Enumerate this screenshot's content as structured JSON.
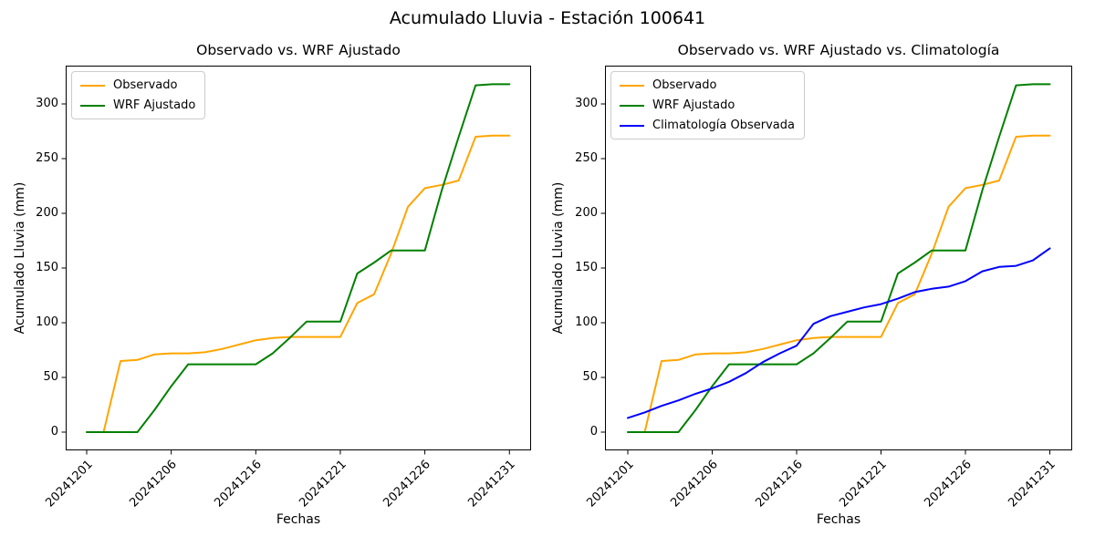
{
  "figure": {
    "suptitle": "Acumulado Lluvia - Estación 100641",
    "background": "#ffffff"
  },
  "chart_data": [
    {
      "type": "line",
      "title": "Observado vs. WRF Ajustado",
      "xlabel": "Fechas",
      "ylabel": "Acumulado Lluvia (mm)",
      "n_points": 26,
      "x_tick_indices": [
        0,
        5,
        10,
        15,
        20,
        25
      ],
      "x_tick_labels": [
        "20241201",
        "20241206",
        "20241216",
        "20241221",
        "20241226",
        "20241231"
      ],
      "x_tick_rotation": 45,
      "y_ticks": [
        0,
        50,
        100,
        150,
        200,
        250,
        300
      ],
      "ylim": [
        -17,
        335
      ],
      "grid": false,
      "legend_position": "upper left",
      "series": [
        {
          "name": "Observado",
          "color": "#FFA500",
          "values": [
            0,
            0,
            65,
            66,
            71,
            72,
            72,
            73,
            76,
            80,
            84,
            86,
            87,
            87,
            87,
            87,
            118,
            126,
            163,
            206,
            223,
            226,
            230,
            270,
            271,
            271
          ]
        },
        {
          "name": "WRF Ajustado",
          "color": "#008000",
          "values": [
            0,
            0,
            0,
            0,
            20,
            42,
            62,
            62,
            62,
            62,
            62,
            72,
            86,
            101,
            101,
            101,
            145,
            155,
            166,
            166,
            166,
            221,
            270,
            317,
            318,
            318
          ]
        }
      ]
    },
    {
      "type": "line",
      "title": "Observado vs. WRF Ajustado vs. Climatología",
      "xlabel": "Fechas",
      "ylabel": "Acumulado Lluvia (mm)",
      "n_points": 26,
      "x_tick_indices": [
        0,
        5,
        10,
        15,
        20,
        25
      ],
      "x_tick_labels": [
        "20241201",
        "20241206",
        "20241216",
        "20241221",
        "20241226",
        "20241231"
      ],
      "x_tick_rotation": 45,
      "y_ticks": [
        0,
        50,
        100,
        150,
        200,
        250,
        300
      ],
      "ylim": [
        -17,
        335
      ],
      "grid": false,
      "legend_position": "upper left",
      "series": [
        {
          "name": "Observado",
          "color": "#FFA500",
          "values": [
            0,
            0,
            65,
            66,
            71,
            72,
            72,
            73,
            76,
            80,
            84,
            86,
            87,
            87,
            87,
            87,
            118,
            126,
            163,
            206,
            223,
            226,
            230,
            270,
            271,
            271
          ]
        },
        {
          "name": "WRF Ajustado",
          "color": "#008000",
          "values": [
            0,
            0,
            0,
            0,
            20,
            42,
            62,
            62,
            62,
            62,
            62,
            72,
            86,
            101,
            101,
            101,
            145,
            155,
            166,
            166,
            166,
            221,
            270,
            317,
            318,
            318
          ]
        },
        {
          "name": "Climatología Observada",
          "color": "#0000FF",
          "values": [
            13,
            18,
            24,
            29,
            35,
            40,
            46,
            54,
            64,
            72,
            79,
            99,
            106,
            110,
            114,
            117,
            122,
            128,
            131,
            133,
            138,
            147,
            151,
            152,
            157,
            168
          ]
        }
      ]
    }
  ]
}
